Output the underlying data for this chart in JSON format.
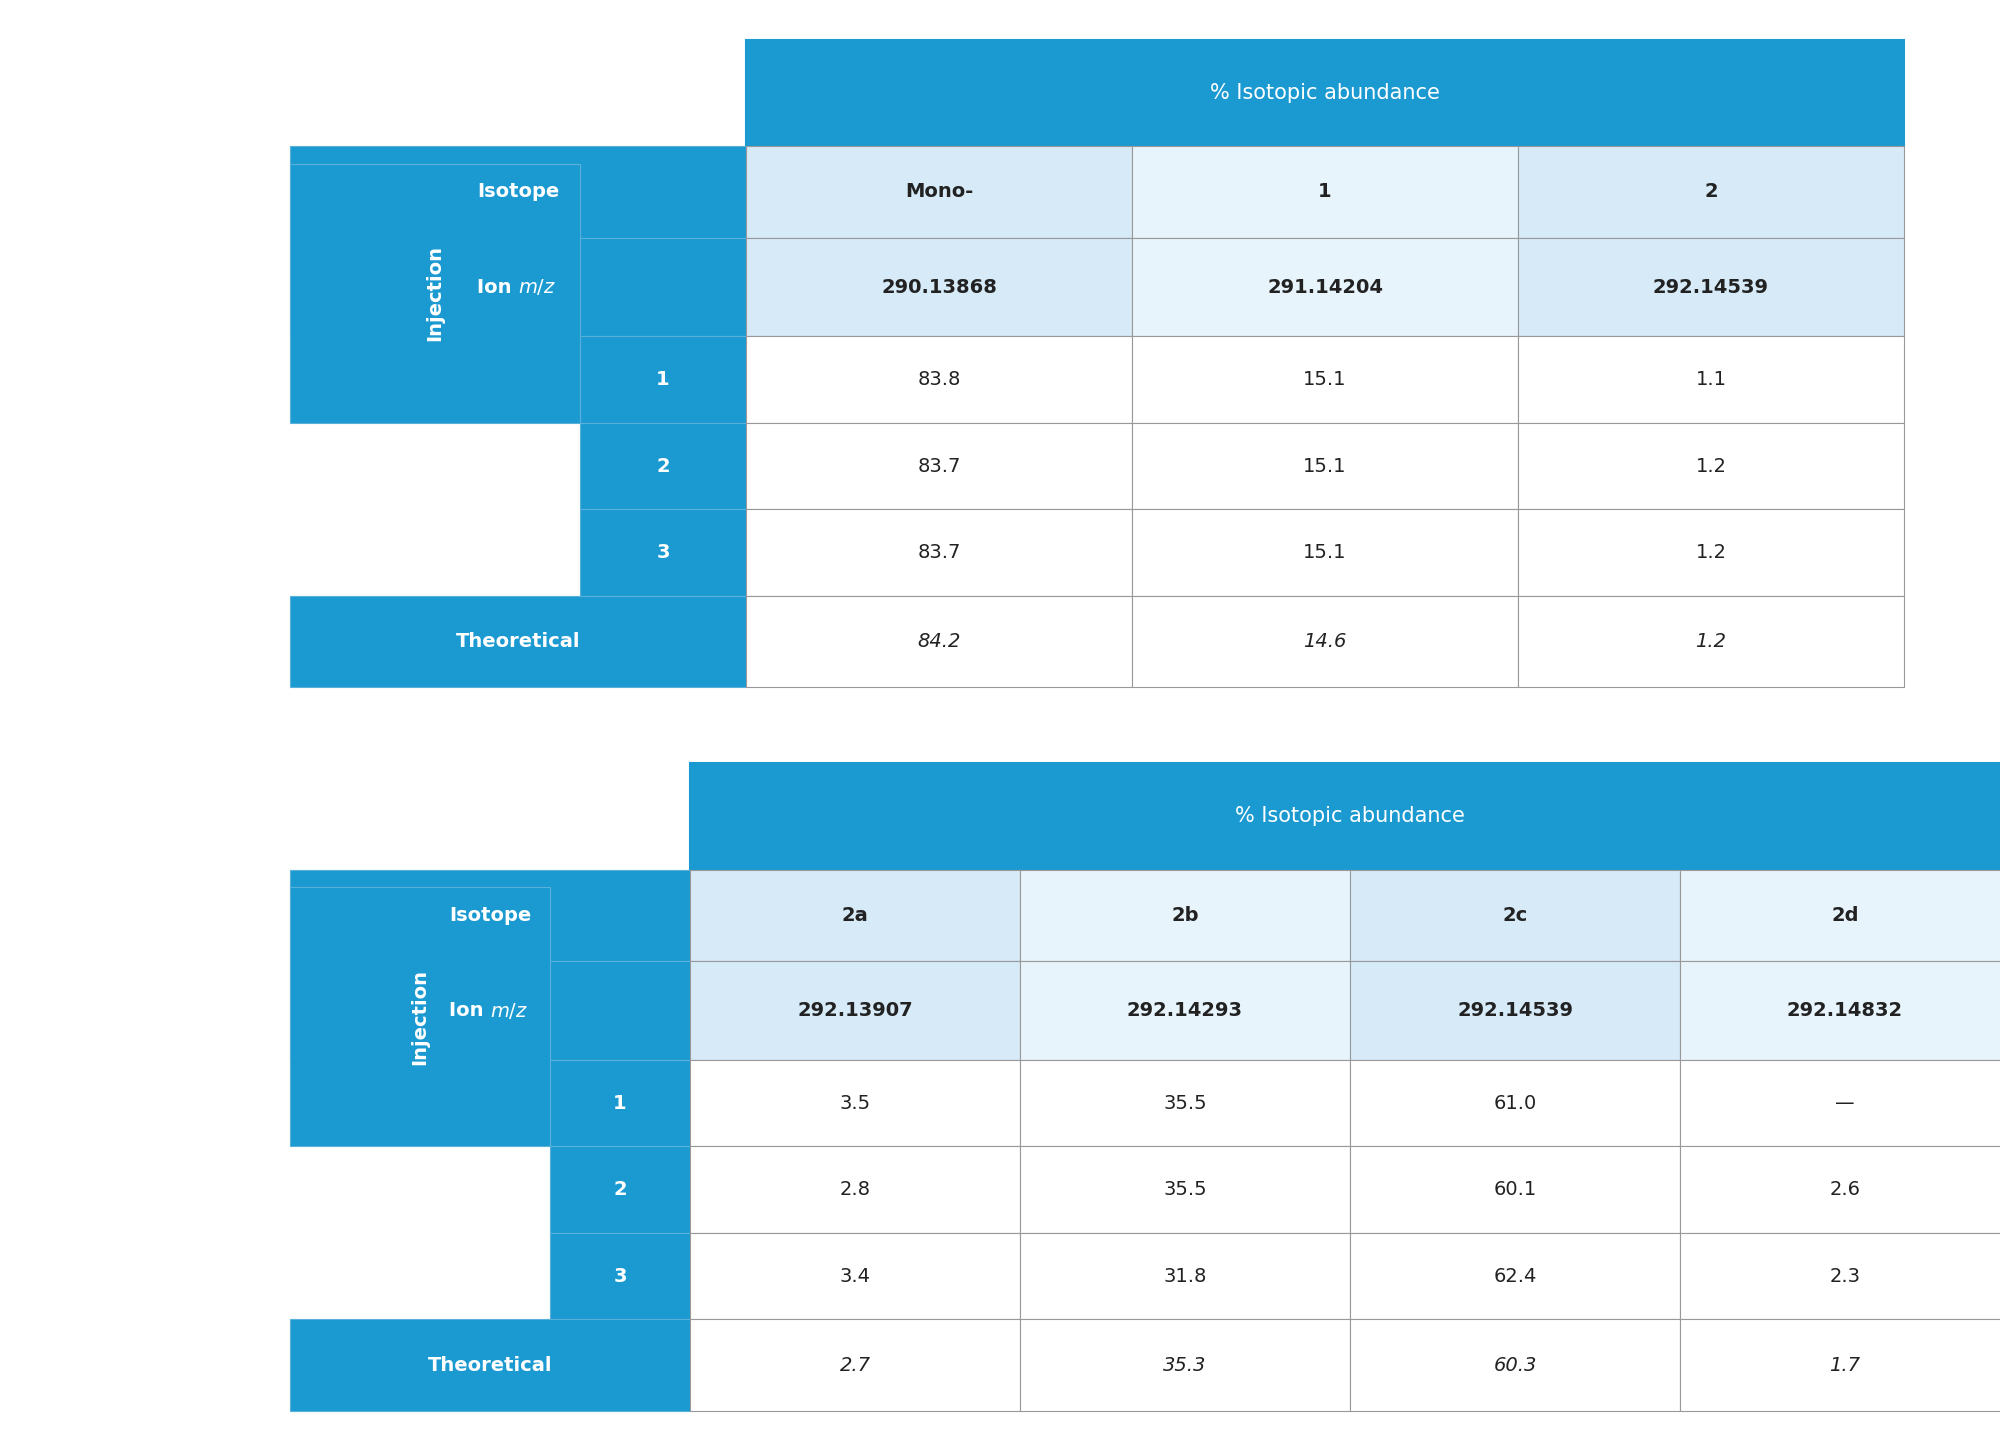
{
  "table1": {
    "header_title": "% Isotopic abundance",
    "isotope_row": [
      "Isotope",
      "Mono-",
      "1",
      "2"
    ],
    "ion_mz_row": [
      "Ion m/z",
      "290.13868",
      "291.14204",
      "292.14539"
    ],
    "injection_rows": [
      [
        "1",
        "83.8",
        "15.1",
        "1.1"
      ],
      [
        "2",
        "83.7",
        "15.1",
        "1.2"
      ],
      [
        "3",
        "83.7",
        "15.1",
        "1.2"
      ]
    ],
    "theoretical_row": [
      "Theoretical",
      "84.2",
      "14.6",
      "1.2"
    ]
  },
  "table2": {
    "header_title": "% Isotopic abundance",
    "isotope_row": [
      "Isotope",
      "2a",
      "2b",
      "2c",
      "2d"
    ],
    "ion_mz_row": [
      "Ion m/z",
      "292.13907",
      "292.14293",
      "292.14539",
      "292.14832"
    ],
    "injection_rows": [
      [
        "1",
        "3.5",
        "35.5",
        "61.0",
        "—"
      ],
      [
        "2",
        "2.8",
        "35.5",
        "60.1",
        "2.6"
      ],
      [
        "3",
        "3.4",
        "31.8",
        "62.4",
        "2.3"
      ]
    ],
    "theoretical_row": [
      "Theoretical",
      "2.7",
      "35.3",
      "60.3",
      "1.7"
    ]
  },
  "colors": {
    "blue_dark": "#1B9AD2",
    "blue_light": "#D6EAF8",
    "blue_lighter": "#E8F4FC",
    "white": "#FFFFFF",
    "text_dark": "#222222",
    "text_white": "#FFFFFF",
    "border": "#999999"
  },
  "layout": {
    "fig_width": 20.0,
    "fig_height": 14.47,
    "dpi": 100
  }
}
